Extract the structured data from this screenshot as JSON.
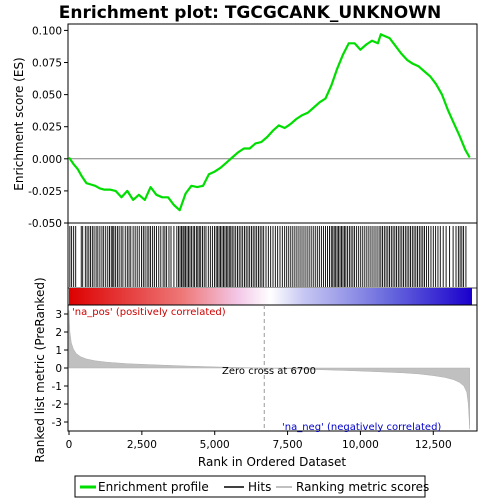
{
  "chart_data": {
    "type": "line",
    "title": "Enrichment plot: TGCGCANK_UNKNOWN",
    "panels": {
      "enrichment": {
        "ylabel": "Enrichment score (ES)",
        "ylim": [
          -0.05,
          0.105
        ],
        "yticks": [
          -0.05,
          -0.025,
          0.0,
          0.025,
          0.05,
          0.075,
          0.1
        ],
        "ytick_labels": [
          "-0.050",
          "-0.025",
          "0.000",
          "0.025",
          "0.050",
          "0.075",
          "0.100"
        ]
      },
      "metric": {
        "ylabel": "Ranked list metric (PreRanked)",
        "ylim": [
          -3.5,
          3.5
        ],
        "yticks": [
          -3,
          -2,
          -1,
          0,
          1,
          2,
          3
        ],
        "ytick_labels": [
          "-3",
          "-2",
          "-1",
          "0",
          "1",
          "2",
          "3"
        ]
      }
    },
    "xlabel": "Rank in Ordered Dataset",
    "xlim": [
      0,
      14000
    ],
    "xticks": [
      0,
      2500,
      5000,
      7500,
      10000,
      12500
    ],
    "xtick_labels": [
      "0",
      "2,500",
      "5,000",
      "7,500",
      "10,000",
      "12,500"
    ],
    "series": [
      {
        "name": "Enrichment profile",
        "color": "#00dd00",
        "x": [
          0,
          150,
          300,
          450,
          600,
          750,
          900,
          1050,
          1200,
          1400,
          1600,
          1800,
          2000,
          2200,
          2400,
          2600,
          2800,
          3000,
          3200,
          3400,
          3600,
          3800,
          4000,
          4200,
          4400,
          4600,
          4800,
          5000,
          5200,
          5400,
          5600,
          5800,
          6000,
          6200,
          6400,
          6600,
          6800,
          7000,
          7200,
          7400,
          7600,
          7800,
          8000,
          8200,
          8400,
          8600,
          8800,
          9000,
          9200,
          9400,
          9600,
          9800,
          10000,
          10200,
          10400,
          10600,
          10700,
          10800,
          11000,
          11200,
          11400,
          11600,
          11800,
          12000,
          12200,
          12400,
          12600,
          12800,
          13000,
          13200,
          13400,
          13600,
          13750
        ],
        "y": [
          0.001,
          -0.004,
          -0.008,
          -0.014,
          -0.019,
          -0.02,
          -0.021,
          -0.023,
          -0.024,
          -0.024,
          -0.025,
          -0.03,
          -0.025,
          -0.032,
          -0.028,
          -0.032,
          -0.022,
          -0.028,
          -0.03,
          -0.03,
          -0.036,
          -0.04,
          -0.027,
          -0.021,
          -0.022,
          -0.021,
          -0.012,
          -0.01,
          -0.007,
          -0.003,
          0.001,
          0.005,
          0.008,
          0.008,
          0.012,
          0.013,
          0.017,
          0.022,
          0.026,
          0.024,
          0.027,
          0.031,
          0.034,
          0.036,
          0.04,
          0.044,
          0.047,
          0.057,
          0.07,
          0.081,
          0.09,
          0.09,
          0.085,
          0.089,
          0.092,
          0.09,
          0.097,
          0.096,
          0.094,
          0.088,
          0.082,
          0.077,
          0.074,
          0.072,
          0.068,
          0.064,
          0.058,
          0.05,
          0.038,
          0.028,
          0.018,
          0.007,
          0.001
        ]
      },
      {
        "name": "Hits",
        "color": "#000000"
      },
      {
        "name": "Ranking metric scores",
        "color": "#c0c0c0"
      }
    ],
    "hits_positions": [
      30,
      90,
      160,
      230,
      420,
      470,
      560,
      620,
      680,
      740,
      800,
      860,
      930,
      990,
      1060,
      1130,
      1190,
      1260,
      1330,
      1390,
      1450,
      1500,
      1540,
      1600,
      1660,
      1720,
      1790,
      1850,
      1930,
      2000,
      2060,
      2120,
      2200,
      2270,
      2340,
      2410,
      2490,
      2550,
      2610,
      2680,
      2740,
      2800,
      2870,
      2930,
      3000,
      3080,
      3150,
      3230,
      3290,
      3350,
      3430,
      3500,
      3600,
      3700,
      3760,
      3810,
      3860,
      3910,
      3950,
      4000,
      4050,
      4100,
      4150,
      4200,
      4260,
      4310,
      4370,
      4420,
      4470,
      4520,
      4580,
      4640,
      4700,
      4780,
      4850,
      4920,
      4990,
      5050,
      5100,
      5150,
      5200,
      5250,
      5300,
      5350,
      5400,
      5450,
      5500,
      5550,
      5600,
      5660,
      5720,
      5780,
      5840,
      5900,
      5960,
      6020,
      6080,
      6140,
      6200,
      6260,
      6320,
      6380,
      6440,
      6500,
      6560,
      6620,
      6680,
      6760,
      6840,
      6920,
      7000,
      7080,
      7160,
      7240,
      7320,
      7400,
      7470,
      7540,
      7610,
      7680,
      7750,
      7820,
      7890,
      7960,
      8030,
      8100,
      8170,
      8240,
      8310,
      8380,
      8450,
      8520,
      8590,
      8660,
      8730,
      8800,
      8870,
      8940,
      9000,
      9050,
      9100,
      9150,
      9200,
      9250,
      9300,
      9350,
      9400,
      9450,
      9500,
      9560,
      9620,
      9680,
      9740,
      9800,
      9870,
      9940,
      10010,
      10080,
      10150,
      10220,
      10290,
      10360,
      10430,
      10500,
      10570,
      10640,
      10700,
      10760,
      10820,
      10880,
      10940,
      11000,
      11060,
      11120,
      11180,
      11240,
      11300,
      11360,
      11420,
      11480,
      11540,
      11600,
      11660,
      11720,
      11780,
      11840,
      11900,
      11960,
      12020,
      12080,
      12140,
      12200,
      12270,
      12340,
      12420,
      12500,
      12580,
      12660,
      12740,
      12840,
      12940,
      13060,
      13180,
      13280,
      13360,
      13420,
      13480,
      13540,
      13620
    ],
    "metric_curve": {
      "x": [
        0,
        30,
        80,
        150,
        250,
        400,
        600,
        900,
        1300,
        2000,
        3000,
        4000,
        5000,
        6000,
        6700,
        7500,
        8500,
        9500,
        10500,
        11500,
        12000,
        12500,
        12900,
        13200,
        13400,
        13550,
        13650,
        13700,
        13750
      ],
      "y": [
        3.2,
        2.0,
        1.4,
        1.05,
        0.8,
        0.62,
        0.5,
        0.4,
        0.32,
        0.24,
        0.17,
        0.11,
        0.06,
        0.02,
        0.0,
        -0.04,
        -0.09,
        -0.14,
        -0.2,
        -0.27,
        -0.33,
        -0.42,
        -0.52,
        -0.65,
        -0.8,
        -1.0,
        -1.35,
        -2.0,
        -3.4
      ]
    },
    "zero_cross": 6700,
    "annotations": {
      "pos_label": "'na_pos' (positively correlated)",
      "neg_label": "'na_neg' (negatively correlated)",
      "zero_cross_label": "Zero cross at 6700"
    },
    "legend": {
      "placement": "bottom",
      "items": [
        "Enrichment profile",
        "Hits",
        "Ranking metric scores"
      ]
    }
  }
}
